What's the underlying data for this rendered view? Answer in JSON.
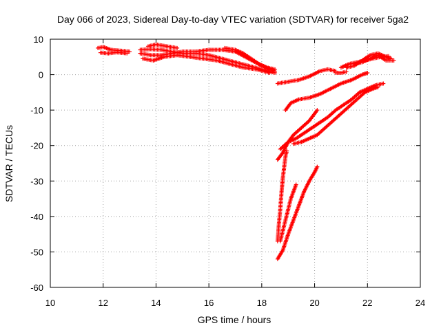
{
  "chart_data": {
    "type": "scatter",
    "title": "Day 066 of 2023, Sidereal Day-to-day VTEC variation (SDTVAR) for receiver 5ga2",
    "xlabel": "GPS time / hours",
    "ylabel": "SDTVAR / TECUs",
    "xlim": [
      10,
      24
    ],
    "ylim": [
      -60,
      10
    ],
    "x_ticks": [
      10,
      12,
      14,
      16,
      18,
      20,
      22,
      24
    ],
    "y_ticks": [
      10,
      0,
      -10,
      -20,
      -30,
      -40,
      -50,
      -60
    ],
    "x_tick_labels": [
      "10",
      "12",
      "14",
      "16",
      "18",
      "20",
      "22",
      "24"
    ],
    "y_tick_labels": [
      "10",
      "0",
      "-10",
      "-20",
      "-30",
      "-40",
      "-50",
      "-60"
    ],
    "grid": true,
    "legend": false,
    "marker": "+",
    "color": "#ff0000",
    "segments": [
      [
        [
          11.8,
          7.5
        ],
        [
          12.0,
          7.8
        ],
        [
          12.3,
          7.0
        ],
        [
          12.6,
          6.8
        ],
        [
          13.0,
          6.5
        ]
      ],
      [
        [
          11.9,
          6.2
        ],
        [
          12.2,
          6.0
        ],
        [
          12.5,
          6.3
        ],
        [
          12.9,
          6.0
        ]
      ],
      [
        [
          13.4,
          7.0
        ],
        [
          13.8,
          7.2
        ],
        [
          14.2,
          7.0
        ],
        [
          14.6,
          6.5
        ],
        [
          15.0,
          6.0
        ],
        [
          15.5,
          6.0
        ],
        [
          16.0,
          5.5
        ],
        [
          16.5,
          4.5
        ],
        [
          17.0,
          3.5
        ],
        [
          17.5,
          2.5
        ],
        [
          18.0,
          1.5
        ],
        [
          18.5,
          0.5
        ]
      ],
      [
        [
          13.4,
          6.0
        ],
        [
          13.8,
          5.5
        ],
        [
          14.2,
          5.5
        ],
        [
          14.6,
          6.0
        ],
        [
          15.0,
          6.5
        ],
        [
          15.5,
          6.5
        ],
        [
          16.0,
          7.0
        ],
        [
          16.5,
          7.0
        ],
        [
          17.0,
          6.5
        ],
        [
          17.5,
          4.5
        ],
        [
          18.0,
          2.5
        ],
        [
          18.5,
          1.0
        ]
      ],
      [
        [
          13.5,
          4.5
        ],
        [
          13.9,
          4.0
        ],
        [
          14.3,
          5.0
        ],
        [
          14.8,
          5.5
        ],
        [
          15.3,
          5.0
        ],
        [
          15.8,
          4.5
        ],
        [
          16.3,
          4.0
        ],
        [
          16.8,
          3.0
        ],
        [
          17.3,
          2.0
        ],
        [
          17.8,
          1.5
        ],
        [
          18.3,
          0.5
        ]
      ],
      [
        [
          13.7,
          8.0
        ],
        [
          14.0,
          8.5
        ],
        [
          14.4,
          8.0
        ],
        [
          14.8,
          7.5
        ]
      ],
      [
        [
          16.6,
          7.5
        ],
        [
          17.0,
          7.0
        ],
        [
          17.3,
          6.0
        ],
        [
          17.6,
          4.5
        ],
        [
          17.9,
          3.0
        ],
        [
          18.2,
          2.0
        ],
        [
          18.5,
          1.5
        ]
      ],
      [
        [
          18.6,
          -2.5
        ],
        [
          19.0,
          -2.0
        ],
        [
          19.4,
          -1.5
        ],
        [
          19.8,
          -0.5
        ],
        [
          20.2,
          1.0
        ],
        [
          20.5,
          1.5
        ],
        [
          20.8,
          1.0
        ]
      ],
      [
        [
          20.8,
          0.5
        ],
        [
          21.0,
          0.5
        ],
        [
          21.2,
          0.8
        ]
      ],
      [
        [
          21.0,
          2.0
        ],
        [
          21.3,
          3.0
        ],
        [
          21.6,
          3.5
        ],
        [
          21.9,
          4.0
        ],
        [
          22.2,
          4.5
        ],
        [
          22.5,
          5.0
        ],
        [
          22.8,
          5.2
        ]
      ],
      [
        [
          21.2,
          2.0
        ],
        [
          21.5,
          2.5
        ],
        [
          21.8,
          4.0
        ],
        [
          22.1,
          5.5
        ],
        [
          22.4,
          6.0
        ],
        [
          22.7,
          5.0
        ],
        [
          22.9,
          4.5
        ]
      ],
      [
        [
          21.5,
          3.0
        ],
        [
          21.8,
          3.5
        ],
        [
          22.1,
          4.5
        ],
        [
          22.4,
          5.5
        ],
        [
          22.7,
          4.0
        ],
        [
          23.0,
          4.0
        ]
      ],
      [
        [
          18.9,
          -10.0
        ],
        [
          19.1,
          -8.0
        ],
        [
          19.4,
          -7.0
        ],
        [
          19.8,
          -6.5
        ],
        [
          20.2,
          -5.5
        ],
        [
          20.6,
          -4.0
        ],
        [
          21.0,
          -2.5
        ],
        [
          21.4,
          -1.5
        ],
        [
          21.8,
          0.0
        ],
        [
          22.0,
          0.5
        ]
      ],
      [
        [
          18.7,
          -21.0
        ],
        [
          19.0,
          -19.0
        ],
        [
          19.3,
          -18.0
        ],
        [
          19.6,
          -16.5
        ],
        [
          19.9,
          -15.0
        ],
        [
          20.2,
          -13.5
        ],
        [
          20.5,
          -12.0
        ],
        [
          20.8,
          -10.0
        ],
        [
          21.1,
          -8.5
        ],
        [
          21.4,
          -7.0
        ],
        [
          21.7,
          -5.0
        ],
        [
          22.0,
          -4.0
        ],
        [
          22.3,
          -3.0
        ],
        [
          22.6,
          -2.5
        ]
      ],
      [
        [
          18.6,
          -24.0
        ],
        [
          18.8,
          -22.0
        ],
        [
          19.0,
          -19.0
        ],
        [
          19.2,
          -17.0
        ],
        [
          19.5,
          -15.0
        ],
        [
          19.8,
          -13.0
        ],
        [
          20.1,
          -10.0
        ]
      ],
      [
        [
          19.2,
          -19.5
        ],
        [
          19.5,
          -19.0
        ],
        [
          19.8,
          -18.0
        ],
        [
          20.1,
          -17.0
        ],
        [
          20.4,
          -15.0
        ],
        [
          20.7,
          -13.0
        ],
        [
          21.0,
          -11.0
        ],
        [
          21.3,
          -9.0
        ],
        [
          21.6,
          -7.0
        ],
        [
          21.9,
          -5.0
        ],
        [
          22.2,
          -4.0
        ],
        [
          22.4,
          -3.5
        ]
      ],
      [
        [
          18.6,
          -47.0
        ],
        [
          18.65,
          -42.0
        ],
        [
          18.7,
          -38.0
        ],
        [
          18.75,
          -33.0
        ],
        [
          18.8,
          -29.0
        ],
        [
          18.85,
          -26.0
        ],
        [
          18.9,
          -23.0
        ],
        [
          18.95,
          -21.5
        ]
      ],
      [
        [
          18.7,
          -47.0
        ],
        [
          18.8,
          -44.0
        ],
        [
          18.9,
          -41.0
        ],
        [
          19.0,
          -38.0
        ],
        [
          19.1,
          -35.0
        ],
        [
          19.2,
          -33.0
        ],
        [
          19.3,
          -31.0
        ]
      ],
      [
        [
          18.6,
          -52.0
        ],
        [
          18.8,
          -49.5
        ],
        [
          19.0,
          -45.0
        ],
        [
          19.2,
          -41.0
        ],
        [
          19.4,
          -37.0
        ],
        [
          19.6,
          -33.0
        ],
        [
          19.8,
          -30.0
        ],
        [
          20.0,
          -27.5
        ],
        [
          20.1,
          -26.0
        ]
      ]
    ]
  }
}
